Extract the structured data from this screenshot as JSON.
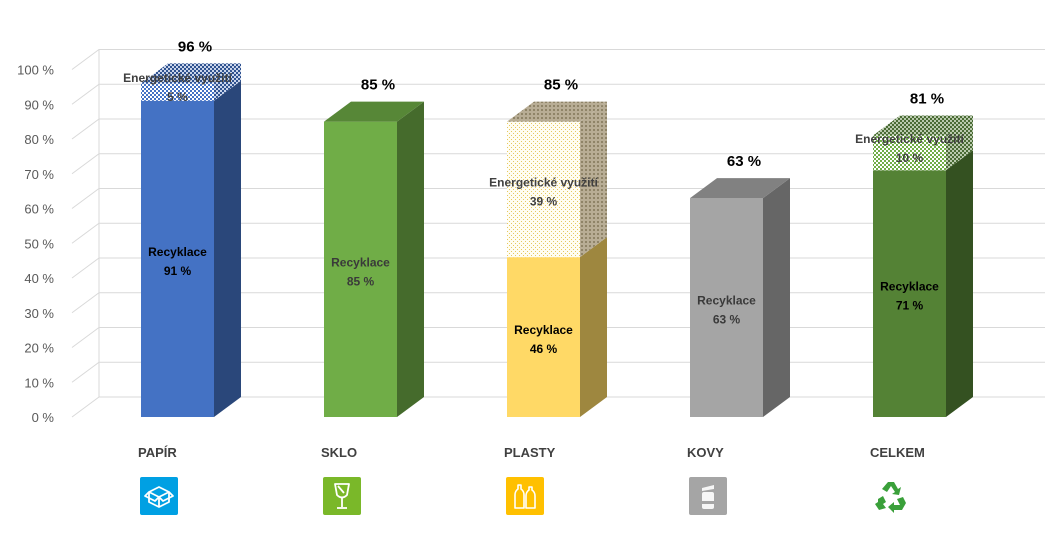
{
  "chart_data": {
    "type": "bar",
    "stacked": true,
    "three_d": true,
    "categories": [
      "PAPÍR",
      "SKLO",
      "PLASTY",
      "KOVY",
      "CELKEM"
    ],
    "series": [
      {
        "name": "Recyklace",
        "values": [
          91,
          85,
          46,
          63,
          71
        ]
      },
      {
        "name": "Energetické využití",
        "values": [
          5,
          0,
          39,
          0,
          10
        ]
      }
    ],
    "totals": [
      "96 %",
      "85 %",
      "85 %",
      "63 %",
      "81 %"
    ],
    "segment_labels": [
      [
        {
          "name": "Recyklace",
          "value": "91 %"
        },
        {
          "name": "Energetické využití",
          "value": "5 %"
        }
      ],
      [
        {
          "name": "Recyklace",
          "value": "85 %"
        }
      ],
      [
        {
          "name": "Recyklace",
          "value": "46 %"
        },
        {
          "name": "Energetické využití",
          "value": "39 %"
        }
      ],
      [
        {
          "name": "Recyklace",
          "value": "63 %"
        }
      ],
      [
        {
          "name": "Recyklace",
          "value": "71 %"
        },
        {
          "name": "Energetické využití",
          "value": "10 %"
        }
      ]
    ],
    "y_ticks": [
      "0 %",
      "10 %",
      "20 %",
      "30 %",
      "40 %",
      "50 %",
      "60 %",
      "70 %",
      "80 %",
      "90 %",
      "100 %"
    ],
    "ylim": [
      0,
      100
    ],
    "grid": true,
    "legend": "none",
    "colors": {
      "recycling": [
        "#4472c4",
        "#70ad47",
        "#ffd966",
        "#a5a5a5",
        "#548235"
      ],
      "energy": [
        "#4472c4",
        "",
        "#ffe699",
        "",
        "#70ad47"
      ]
    },
    "icons": [
      {
        "name": "box-icon",
        "color": "#00a0e3"
      },
      {
        "name": "glass-icon",
        "color": "#7ab829"
      },
      {
        "name": "bottles-icon",
        "color": "#ffc000"
      },
      {
        "name": "can-icon",
        "color": "#a5a5a5"
      },
      {
        "name": "recycle-icon",
        "color": "#ffffff"
      }
    ]
  }
}
